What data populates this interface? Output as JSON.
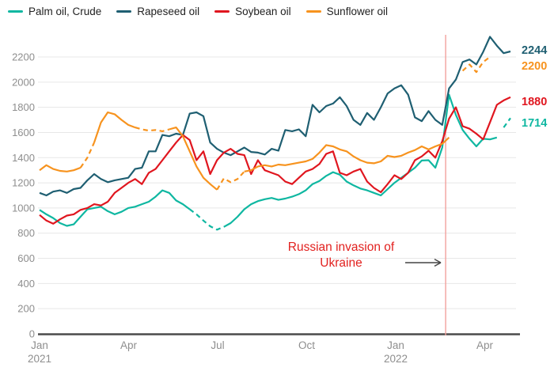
{
  "legend": {
    "items": [
      {
        "label": "Palm oil, Crude",
        "color": "#0fb7a1"
      },
      {
        "label": "Rapeseed oil",
        "color": "#1f5f72"
      },
      {
        "label": "Soybean oil",
        "color": "#e0161f"
      },
      {
        "label": "Sunflower oil",
        "color": "#f7931e"
      }
    ]
  },
  "annotation": {
    "line1": "Russian invasion of",
    "line2": "Ukraine",
    "color": "#e2211f"
  },
  "event_line": {
    "week_index": 59.5,
    "color": "#f2a19c"
  },
  "end_labels": [
    {
      "text": "2244",
      "color": "#1f5f72",
      "y": 68
    },
    {
      "text": "2200",
      "color": "#f7931e",
      "y": 88
    },
    {
      "text": "1880",
      "color": "#e0161f",
      "y": 133
    },
    {
      "text": "1714",
      "color": "#0fb7a1",
      "y": 160
    }
  ],
  "chart_data": {
    "type": "line",
    "x": "weekly observations, Jan 2021 - early May 2022",
    "ylim": [
      0,
      2400
    ],
    "grid": "horizontal",
    "legend_position": "top",
    "y_ticks": [
      0,
      200,
      400,
      600,
      800,
      1000,
      1200,
      1400,
      1600,
      1800,
      2000,
      2200
    ],
    "x_ticks": [
      {
        "label": "Jan",
        "year": "2021",
        "m": 0
      },
      {
        "label": "Apr",
        "m": 3
      },
      {
        "label": "Jul",
        "m": 6
      },
      {
        "label": "Oct",
        "m": 9
      },
      {
        "label": "Jan",
        "year": "2022",
        "m": 12
      },
      {
        "label": "Apr",
        "m": 15
      }
    ],
    "series": [
      {
        "name": "Palm oil, Crude",
        "color": "#0fb7a1",
        "last_value": 1714,
        "segments": [
          [
            0,
            22,
            "s"
          ],
          [
            22,
            27,
            "d"
          ],
          [
            27,
            67,
            "s"
          ],
          [
            68,
            69,
            "d"
          ]
        ],
        "values": [
          985,
          950,
          920,
          880,
          858,
          870,
          930,
          990,
          1000,
          1010,
          975,
          950,
          970,
          1000,
          1010,
          1030,
          1050,
          1090,
          1140,
          1120,
          1060,
          1030,
          990,
          950,
          900,
          855,
          828,
          850,
          880,
          930,
          990,
          1030,
          1055,
          1070,
          1080,
          1065,
          1075,
          1090,
          1110,
          1140,
          1190,
          1215,
          1255,
          1285,
          1265,
          1210,
          1180,
          1155,
          1140,
          1120,
          1100,
          1150,
          1200,
          1240,
          1280,
          1320,
          1377,
          1380,
          1320,
          1480,
          1900,
          1740,
          1620,
          1550,
          1490,
          1550,
          1545,
          1560,
          1640,
          1714
        ]
      },
      {
        "name": "Rapeseed oil",
        "color": "#1f5f72",
        "last_value": 2244,
        "segments": [
          [
            0,
            69,
            "s"
          ]
        ],
        "values": [
          1120,
          1100,
          1130,
          1140,
          1120,
          1150,
          1160,
          1220,
          1270,
          1230,
          1205,
          1220,
          1230,
          1240,
          1310,
          1320,
          1450,
          1450,
          1580,
          1570,
          1590,
          1580,
          1750,
          1760,
          1730,
          1520,
          1470,
          1440,
          1420,
          1450,
          1480,
          1445,
          1440,
          1425,
          1470,
          1455,
          1620,
          1610,
          1625,
          1570,
          1820,
          1760,
          1810,
          1830,
          1880,
          1810,
          1700,
          1660,
          1755,
          1700,
          1800,
          1910,
          1950,
          1975,
          1900,
          1720,
          1690,
          1770,
          1700,
          1660,
          1950,
          2020,
          2160,
          2180,
          2140,
          2240,
          2360,
          2290,
          2230,
          2244
        ]
      },
      {
        "name": "Soybean oil",
        "color": "#e0161f",
        "last_value": 1880,
        "segments": [
          [
            0,
            69,
            "s"
          ]
        ],
        "values": [
          945,
          900,
          875,
          910,
          940,
          950,
          985,
          1000,
          1030,
          1020,
          1050,
          1120,
          1160,
          1200,
          1230,
          1190,
          1280,
          1310,
          1380,
          1450,
          1520,
          1580,
          1540,
          1380,
          1450,
          1270,
          1380,
          1440,
          1470,
          1430,
          1420,
          1270,
          1380,
          1300,
          1280,
          1260,
          1210,
          1190,
          1240,
          1290,
          1310,
          1350,
          1430,
          1450,
          1280,
          1260,
          1290,
          1310,
          1210,
          1160,
          1125,
          1190,
          1260,
          1230,
          1280,
          1380,
          1410,
          1455,
          1400,
          1530,
          1710,
          1800,
          1650,
          1630,
          1590,
          1545,
          1680,
          1820,
          1855,
          1880
        ]
      },
      {
        "name": "Sunflower oil",
        "color": "#f7931e",
        "last_value": 2200,
        "segments": [
          [
            0,
            6,
            "s"
          ],
          [
            6,
            8,
            "d"
          ],
          [
            8,
            14,
            "s"
          ],
          [
            14,
            19,
            "d"
          ],
          [
            19,
            26,
            "s"
          ],
          [
            26,
            30,
            "d"
          ],
          [
            30,
            60,
            "s"
          ],
          [
            62,
            66,
            "d"
          ]
        ],
        "values": [
          1300,
          1340,
          1310,
          1295,
          1290,
          1300,
          1320,
          1400,
          1520,
          1680,
          1760,
          1745,
          1700,
          1660,
          1640,
          1625,
          1615,
          1620,
          1610,
          1625,
          1640,
          1570,
          1450,
          1330,
          1240,
          1190,
          1145,
          1235,
          1205,
          1230,
          1290,
          1300,
          1330,
          1340,
          1330,
          1345,
          1340,
          1350,
          1360,
          1370,
          1390,
          1440,
          1500,
          1490,
          1465,
          1450,
          1410,
          1380,
          1360,
          1355,
          1370,
          1415,
          1405,
          1415,
          1440,
          1460,
          1490,
          1465,
          1490,
          1510,
          1560,
          null,
          2090,
          2140,
          2080,
          2160,
          2200,
          null,
          null,
          null
        ]
      }
    ]
  }
}
